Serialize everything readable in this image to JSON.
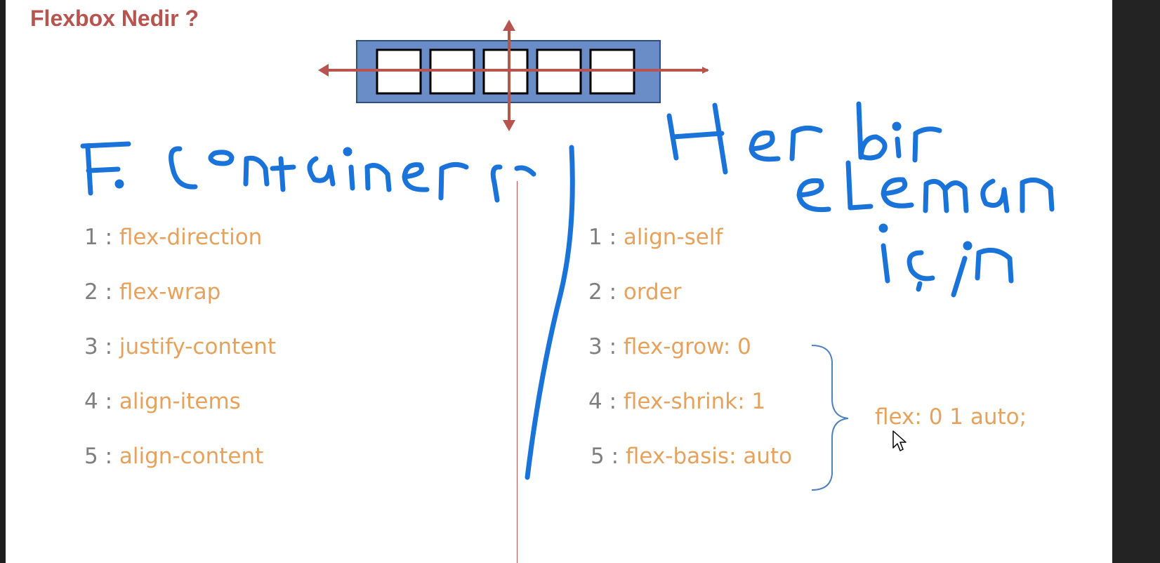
{
  "slide": {
    "title": "Flexbox Nedir ?",
    "container_properties": [
      {
        "number": "1",
        "separator": " : ",
        "property": "flex-direction"
      },
      {
        "number": "2",
        "separator": " : ",
        "property": "flex-wrap"
      },
      {
        "number": "3",
        "separator": " : ",
        "property": "justify-content"
      },
      {
        "number": "4",
        "separator": " : ",
        "property": "align-items"
      },
      {
        "number": "5",
        "separator": " : ",
        "property": "align-content"
      }
    ],
    "item_properties": [
      {
        "number": "1",
        "separator": " : ",
        "property": "align-self"
      },
      {
        "number": "2",
        "separator": " : ",
        "property": "order"
      },
      {
        "number": "3",
        "separator": " : ",
        "property": "flex-grow: 0"
      },
      {
        "number": "4",
        "separator": " : ",
        "property": "flex-shrink: 1"
      },
      {
        "number": "5",
        "separator": " : ",
        "property": "flex-basis: auto"
      }
    ],
    "shorthand": "flex: 0 1 auto;",
    "handwriting": {
      "left_label": "F. Container",
      "right_label_line1": "Her bir",
      "right_label_line2": "eleman",
      "right_label_line3": "için"
    }
  },
  "colors": {
    "title": "#b85450",
    "number": "#7f7f7f",
    "property": "#e6a25c",
    "container_fill": "#6a8cc7",
    "axis_arrow": "#b85450",
    "ink": "#1a73d9"
  },
  "icons": {
    "pointer": "mouse-pointer-icon"
  }
}
